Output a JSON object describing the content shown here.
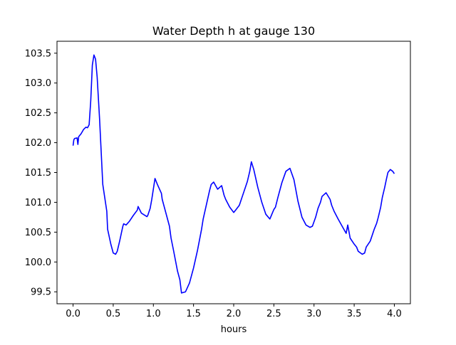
{
  "chart_data": {
    "type": "line",
    "title": "Water Depth h at gauge 130",
    "xlabel": "hours",
    "ylabel": "",
    "xlim": [
      -0.2,
      4.2
    ],
    "ylim": [
      99.3,
      103.7
    ],
    "xticks": [
      0.0,
      0.5,
      1.0,
      1.5,
      2.0,
      2.5,
      3.0,
      3.5,
      4.0
    ],
    "xtick_labels": [
      "0.0",
      "0.5",
      "1.0",
      "1.5",
      "2.0",
      "2.5",
      "3.0",
      "3.5",
      "4.0"
    ],
    "yticks": [
      99.5,
      100.0,
      100.5,
      101.0,
      101.5,
      102.0,
      102.5,
      103.0,
      103.5
    ],
    "ytick_labels": [
      "99.5",
      "100.0",
      "100.5",
      "101.0",
      "101.5",
      "102.0",
      "102.5",
      "103.0",
      "103.5"
    ],
    "grid": false,
    "legend": "none",
    "series": [
      {
        "color": "#0000ff",
        "x": [
          0.0,
          0.01,
          0.02,
          0.05,
          0.06,
          0.07,
          0.1,
          0.13,
          0.16,
          0.18,
          0.2,
          0.22,
          0.24,
          0.26,
          0.28,
          0.3,
          0.33,
          0.37,
          0.42,
          0.43,
          0.47,
          0.5,
          0.53,
          0.55,
          0.58,
          0.62,
          0.63,
          0.66,
          0.7,
          0.75,
          0.8,
          0.81,
          0.85,
          0.92,
          0.93,
          0.96,
          0.98,
          1.02,
          1.05,
          1.1,
          1.11,
          1.15,
          1.2,
          1.22,
          1.25,
          1.3,
          1.33,
          1.35,
          1.4,
          1.45,
          1.5,
          1.55,
          1.6,
          1.62,
          1.65,
          1.7,
          1.72,
          1.75,
          1.8,
          1.85,
          1.88,
          1.9,
          1.95,
          2.0,
          2.03,
          2.07,
          2.12,
          2.17,
          2.2,
          2.22,
          2.25,
          2.3,
          2.35,
          2.4,
          2.45,
          2.5,
          2.52,
          2.55,
          2.6,
          2.65,
          2.7,
          2.75,
          2.8,
          2.85,
          2.9,
          2.95,
          2.98,
          3.02,
          3.05,
          3.08,
          3.1,
          3.15,
          3.2,
          3.22,
          3.25,
          3.3,
          3.35,
          3.4,
          3.42,
          3.45,
          3.5,
          3.53,
          3.55,
          3.58,
          3.6,
          3.63,
          3.65,
          3.7,
          3.75,
          3.78,
          3.8,
          3.83,
          3.85,
          3.88,
          3.9,
          3.92,
          3.95,
          3.98,
          4.0
        ],
        "y": [
          101.95,
          102.05,
          102.07,
          102.08,
          101.97,
          102.1,
          102.15,
          102.22,
          102.26,
          102.25,
          102.3,
          102.7,
          103.3,
          103.47,
          103.4,
          103.1,
          102.4,
          101.3,
          100.85,
          100.55,
          100.3,
          100.15,
          100.13,
          100.18,
          100.35,
          100.6,
          100.64,
          100.62,
          100.68,
          100.78,
          100.87,
          100.93,
          100.82,
          100.76,
          100.78,
          100.9,
          101.05,
          101.4,
          101.3,
          101.15,
          101.05,
          100.85,
          100.6,
          100.4,
          100.2,
          99.85,
          99.7,
          99.48,
          99.5,
          99.65,
          99.9,
          100.2,
          100.55,
          100.72,
          100.9,
          101.2,
          101.3,
          101.34,
          101.22,
          101.28,
          101.12,
          101.05,
          100.92,
          100.83,
          100.88,
          100.95,
          101.15,
          101.35,
          101.52,
          101.68,
          101.55,
          101.25,
          101.0,
          100.8,
          100.72,
          100.88,
          100.92,
          101.08,
          101.33,
          101.52,
          101.57,
          101.38,
          101.02,
          100.75,
          100.62,
          100.58,
          100.6,
          100.75,
          100.9,
          101.0,
          101.1,
          101.16,
          101.05,
          100.95,
          100.85,
          100.72,
          100.6,
          100.48,
          100.62,
          100.4,
          100.3,
          100.25,
          100.18,
          100.15,
          100.13,
          100.15,
          100.25,
          100.35,
          100.55,
          100.65,
          100.75,
          100.92,
          101.08,
          101.25,
          101.38,
          101.5,
          101.55,
          101.52,
          101.48
        ]
      }
    ]
  }
}
